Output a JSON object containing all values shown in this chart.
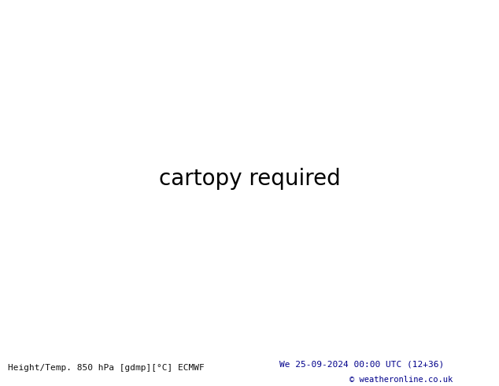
{
  "title_left": "Height/Temp. 850 hPa [gdmp][°C] ECMWF",
  "title_right": "We 25-09-2024 00:00 UTC (12+36)",
  "copyright": "© weatheronline.co.uk",
  "fig_width": 6.34,
  "fig_height": 4.9,
  "dpi": 100,
  "bg_white": "#ffffff",
  "bottom_text_color": "#00008b",
  "map_extent": [
    -175,
    -50,
    15,
    75
  ],
  "land_color": "#c8c8c8",
  "ocean_color": "#d8dce8",
  "green_color": "#b4dc82",
  "light_green": "#c8e890",
  "gray_land": "#b4b4b4",
  "black_contour_lw": 2.2,
  "temp_contour_lw": 1.3
}
